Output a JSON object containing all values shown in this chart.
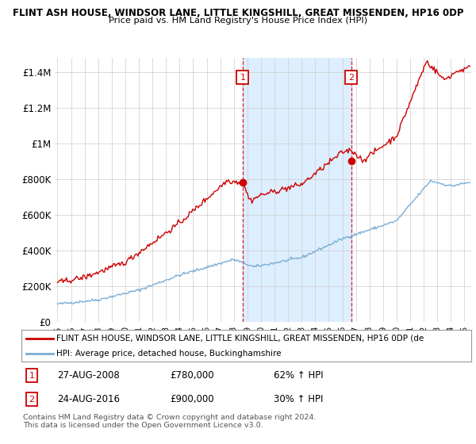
{
  "title": "FLINT ASH HOUSE, WINDSOR LANE, LITTLE KINGSHILL, GREAT MISSENDEN, HP16 0DP",
  "subtitle": "Price paid vs. HM Land Registry's House Price Index (HPI)",
  "ylabel_ticks": [
    "£0",
    "£200K",
    "£400K",
    "£600K",
    "£800K",
    "£1M",
    "£1.2M",
    "£1.4M"
  ],
  "ytick_vals": [
    0,
    200000,
    400000,
    600000,
    800000,
    1000000,
    1200000,
    1400000
  ],
  "ylim": [
    0,
    1480000
  ],
  "xlim_start": 1994.8,
  "xlim_end": 2025.5,
  "purchase1_date": 2008.65,
  "purchase1_price": 780000,
  "purchase1_label": "1",
  "purchase2_date": 2016.65,
  "purchase2_price": 900000,
  "purchase2_label": "2",
  "red_color": "#cc0000",
  "blue_color": "#7aadd4",
  "shade_color": "#ddeeff",
  "legend_text_red": "FLINT ASH HOUSE, WINDSOR LANE, LITTLE KINGSHILL, GREAT MISSENDEN, HP16 0DP (de",
  "legend_text_blue": "HPI: Average price, detached house, Buckinghamshire",
  "annotation1_date": "27-AUG-2008",
  "annotation1_price": "£780,000",
  "annotation1_hpi": "62% ↑ HPI",
  "annotation2_date": "24-AUG-2016",
  "annotation2_price": "£900,000",
  "annotation2_hpi": "30% ↑ HPI",
  "footer": "Contains HM Land Registry data © Crown copyright and database right 2024.\nThis data is licensed under the Open Government Licence v3.0.",
  "bg_color": "#ffffff",
  "grid_color": "#cccccc"
}
